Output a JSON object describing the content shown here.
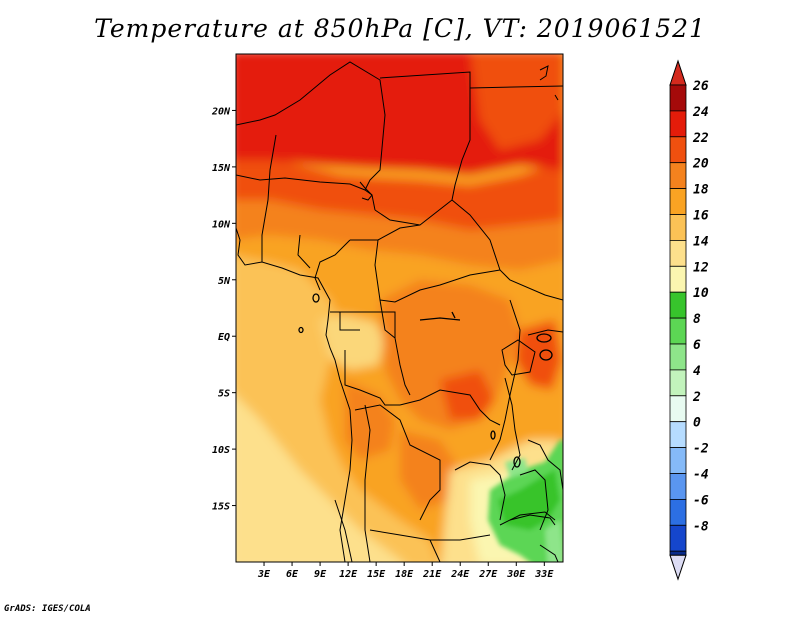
{
  "title": "Temperature at 850hPa [C], VT: 2019061521",
  "credit": "GrADS: IGES/COLA",
  "map": {
    "lon_range": [
      0,
      35
    ],
    "lat_range": [
      -20,
      25
    ],
    "lon_ticks": [
      {
        "value": 3,
        "label": "3E"
      },
      {
        "value": 6,
        "label": "6E"
      },
      {
        "value": 9,
        "label": "9E"
      },
      {
        "value": 12,
        "label": "12E"
      },
      {
        "value": 15,
        "label": "15E"
      },
      {
        "value": 18,
        "label": "18E"
      },
      {
        "value": 21,
        "label": "21E"
      },
      {
        "value": 24,
        "label": "24E"
      },
      {
        "value": 27,
        "label": "27E"
      },
      {
        "value": 30,
        "label": "30E"
      },
      {
        "value": 33,
        "label": "33E"
      }
    ],
    "lat_ticks": [
      {
        "value": 20,
        "label": "20N"
      },
      {
        "value": 15,
        "label": "15N"
      },
      {
        "value": 10,
        "label": "10N"
      },
      {
        "value": 5,
        "label": "5N"
      },
      {
        "value": 0,
        "label": "EQ"
      },
      {
        "value": -5,
        "label": "5S"
      },
      {
        "value": -10,
        "label": "10S"
      },
      {
        "value": -15,
        "label": "15S"
      }
    ]
  },
  "colorbar": {
    "levels": [
      {
        "value": 26,
        "label": "26",
        "color": "#a50a0a"
      },
      {
        "value": 24,
        "label": "24",
        "color": "#e41c0a"
      },
      {
        "value": 22,
        "label": "22",
        "color": "#f0500f"
      },
      {
        "value": 20,
        "label": "20",
        "color": "#f4821e"
      },
      {
        "value": 18,
        "label": "18",
        "color": "#f9a323"
      },
      {
        "value": 16,
        "label": "16",
        "color": "#fbc256"
      },
      {
        "value": 14,
        "label": "14",
        "color": "#fde08c"
      },
      {
        "value": 12,
        "label": "12",
        "color": "#fbf6b0"
      },
      {
        "value": 10,
        "label": "10",
        "color": "#37c42c"
      },
      {
        "value": 8,
        "label": "8",
        "color": "#5cd654"
      },
      {
        "value": 6,
        "label": "6",
        "color": "#8ee58a"
      },
      {
        "value": 4,
        "label": "4",
        "color": "#c2f3bc"
      },
      {
        "value": 2,
        "label": "2",
        "color": "#e8fbf1"
      },
      {
        "value": 0,
        "label": "0",
        "color": "#b6dcff"
      },
      {
        "value": -2,
        "label": "-2",
        "color": "#85baf8"
      },
      {
        "value": -4,
        "label": "-4",
        "color": "#5a96f0"
      },
      {
        "value": -6,
        "label": "-6",
        "color": "#2c6fe3"
      },
      {
        "value": -8,
        "label": "-8",
        "color": "#1546cc"
      }
    ],
    "top_triangle_color": "#d42a1e",
    "bottom_triangle_color": "#dcdcf4",
    "bottom_extra_color": "#082a8a"
  }
}
